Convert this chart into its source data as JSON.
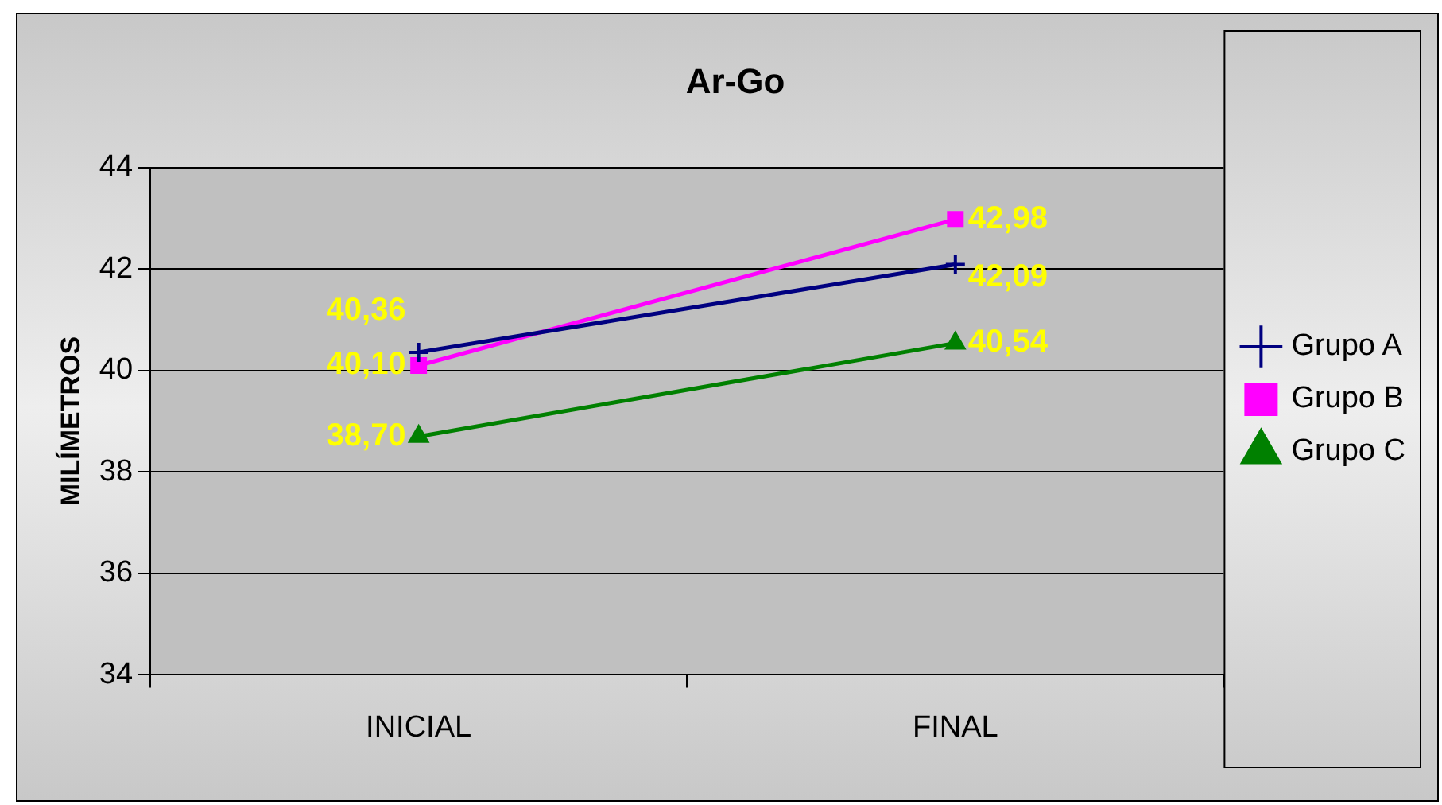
{
  "chart_data": {
    "type": "line",
    "title": "Ar-Go",
    "ylabel": "MILÍMETROS",
    "categories": [
      "INICIAL",
      "FINAL"
    ],
    "series": [
      {
        "name": "Grupo A",
        "color": "#000080",
        "values": [
          40.36,
          42.09
        ],
        "marker": "cross",
        "value_labels": [
          "40,36",
          "42,09"
        ]
      },
      {
        "name": "Grupo B",
        "color": "#ff00ff",
        "values": [
          40.1,
          42.98
        ],
        "marker": "square",
        "value_labels": [
          "40,10",
          "42,98"
        ]
      },
      {
        "name": "Grupo C",
        "color": "#008000",
        "values": [
          38.7,
          40.54
        ],
        "marker": "triangle",
        "value_labels": [
          "38,70",
          "40,54"
        ]
      }
    ],
    "ylim": [
      34,
      44
    ],
    "yticks": [
      34,
      36,
      38,
      40,
      42,
      44
    ],
    "grid": "y",
    "legend": "right"
  }
}
